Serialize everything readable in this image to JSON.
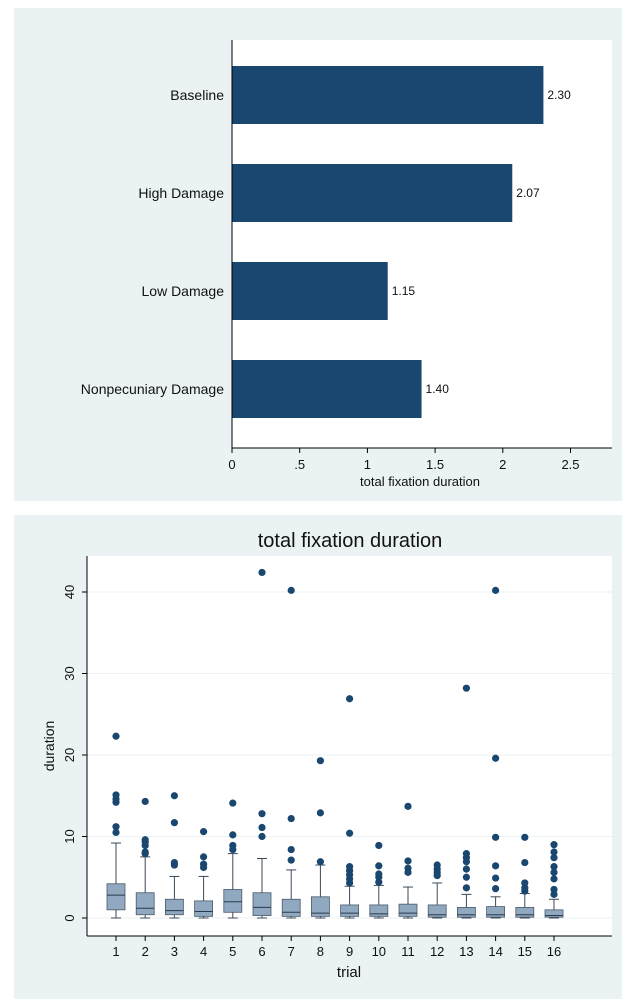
{
  "chart_data": [
    {
      "type": "bar",
      "orientation": "horizontal",
      "categories": [
        "Baseline",
        "High Damage",
        "Low Damage",
        "Nonpecuniary Damage"
      ],
      "values": [
        2.3,
        2.07,
        1.15,
        1.4
      ],
      "value_labels": [
        "2.30",
        "2.07",
        "1.15",
        "1.40"
      ],
      "xlabel": "total fixation duration",
      "xlim": [
        0,
        2.8
      ],
      "xticks": [
        0,
        0.5,
        1,
        1.5,
        2,
        2.5
      ],
      "xtick_labels": [
        "0",
        ".5",
        "1",
        "1.5",
        "2",
        "2.5"
      ],
      "grid": false,
      "colors": {
        "bar": "#1a476f"
      }
    },
    {
      "type": "box",
      "title": "total fixation duration",
      "xlabel": "trial",
      "ylabel": "duration",
      "ylim": [
        -2,
        44
      ],
      "yticks": [
        0,
        10,
        20,
        30,
        40
      ],
      "ytick_labels": [
        "0",
        "10",
        "20",
        "30",
        "40"
      ],
      "grid": true,
      "categories": [
        "1",
        "2",
        "3",
        "4",
        "5",
        "6",
        "7",
        "8",
        "9",
        "10",
        "11",
        "12",
        "13",
        "14",
        "15",
        "16"
      ],
      "boxes": [
        {
          "q1": 1.0,
          "median": 2.8,
          "q3": 4.2,
          "whisker_low": 0,
          "whisker_high": 9.2,
          "outliers": [
            10.5,
            11.2,
            14.2,
            14.6,
            15.1,
            22.3
          ]
        },
        {
          "q1": 0.4,
          "median": 1.2,
          "q3": 3.1,
          "whisker_low": 0,
          "whisker_high": 7.5,
          "outliers": [
            7.9,
            8.1,
            8.9,
            9.3,
            9.6,
            14.3
          ]
        },
        {
          "q1": 0.4,
          "median": 0.9,
          "q3": 2.3,
          "whisker_low": 0,
          "whisker_high": 5.1,
          "outliers": [
            6.5,
            6.8,
            11.7,
            15.0
          ]
        },
        {
          "q1": 0.2,
          "median": 0.8,
          "q3": 2.1,
          "whisker_low": 0,
          "whisker_high": 5.1,
          "outliers": [
            6.2,
            6.6,
            7.5,
            10.6
          ]
        },
        {
          "q1": 0.7,
          "median": 2.0,
          "q3": 3.5,
          "whisker_low": 0,
          "whisker_high": 7.9,
          "outliers": [
            8.4,
            8.9,
            10.2,
            14.1
          ]
        },
        {
          "q1": 0.3,
          "median": 1.3,
          "q3": 3.1,
          "whisker_low": 0,
          "whisker_high": 7.3,
          "outliers": [
            10.0,
            11.1,
            12.8,
            42.4
          ]
        },
        {
          "q1": 0.2,
          "median": 0.7,
          "q3": 2.3,
          "whisker_low": 0,
          "whisker_high": 5.9,
          "outliers": [
            7.1,
            8.4,
            12.2,
            40.2
          ]
        },
        {
          "q1": 0.2,
          "median": 0.6,
          "q3": 2.6,
          "whisker_low": 0,
          "whisker_high": 6.5,
          "outliers": [
            6.9,
            12.9,
            19.3
          ]
        },
        {
          "q1": 0.2,
          "median": 0.6,
          "q3": 1.6,
          "whisker_low": 0,
          "whisker_high": 3.9,
          "outliers": [
            4.3,
            4.8,
            5.3,
            5.8,
            6.3,
            10.4,
            26.9
          ]
        },
        {
          "q1": 0.2,
          "median": 0.5,
          "q3": 1.6,
          "whisker_low": 0,
          "whisker_high": 4.0,
          "outliers": [
            4.4,
            5.0,
            5.4,
            6.4,
            8.9
          ]
        },
        {
          "q1": 0.2,
          "median": 0.6,
          "q3": 1.7,
          "whisker_low": 0,
          "whisker_high": 3.8,
          "outliers": [
            5.6,
            6.1,
            7.0,
            13.7
          ]
        },
        {
          "q1": 0.1,
          "median": 0.4,
          "q3": 1.6,
          "whisker_low": 0,
          "whisker_high": 4.3,
          "outliers": [
            5.2,
            5.6,
            6.0,
            6.5
          ]
        },
        {
          "q1": 0.1,
          "median": 0.4,
          "q3": 1.3,
          "whisker_low": 0,
          "whisker_high": 2.9,
          "outliers": [
            3.7,
            5.0,
            6.0,
            6.9,
            7.4,
            7.9,
            28.2
          ]
        },
        {
          "q1": 0.1,
          "median": 0.4,
          "q3": 1.4,
          "whisker_low": 0,
          "whisker_high": 2.6,
          "outliers": [
            3.6,
            4.9,
            6.4,
            9.9,
            19.6,
            40.2
          ]
        },
        {
          "q1": 0.1,
          "median": 0.4,
          "q3": 1.3,
          "whisker_low": 0,
          "whisker_high": 3.0,
          "outliers": [
            3.3,
            3.7,
            4.3,
            6.8,
            9.9
          ]
        },
        {
          "q1": 0.1,
          "median": 0.3,
          "q3": 1.0,
          "whisker_low": 0,
          "whisker_high": 2.3,
          "outliers": [
            2.9,
            3.5,
            4.8,
            5.6,
            6.3,
            7.4,
            8.1,
            9.0
          ]
        }
      ],
      "colors": {
        "box": "#90a8c0",
        "outlier": "#1a476f",
        "grid": "#eaf2f3",
        "plot_bg": "#ffffff",
        "region_bg": "#eaf2f3"
      }
    }
  ]
}
